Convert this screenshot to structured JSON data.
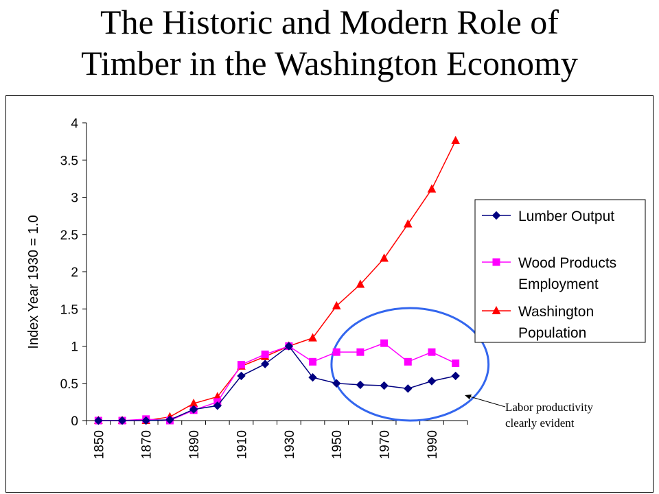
{
  "title_line1": "The Historic and Modern Role of",
  "title_line2": "Timber in the Washington Economy",
  "annotation_line1": "Labor productivity",
  "annotation_line2": "clearly evident",
  "chart_data": {
    "type": "line",
    "ylabel": "Index Year 1930 = 1.0",
    "xlabel": "",
    "ylim": [
      0,
      4
    ],
    "yticks": [
      "0",
      "0.5",
      "1",
      "1.5",
      "2",
      "2.5",
      "3",
      "3.5",
      "4"
    ],
    "x": [
      1850,
      1860,
      1870,
      1880,
      1890,
      1900,
      1910,
      1920,
      1930,
      1940,
      1950,
      1960,
      1970,
      1980,
      1990,
      2000
    ],
    "xtick_labels": [
      "1850",
      "1870",
      "1890",
      "1910",
      "1930",
      "1950",
      "1970",
      "1990"
    ],
    "legend_position": "right",
    "series": [
      {
        "name": "Lumber Output",
        "legend_lines": [
          "Lumber Output"
        ],
        "color": "#000080",
        "marker": "diamond",
        "values": [
          0,
          0,
          0,
          0.01,
          0.15,
          0.2,
          0.6,
          0.76,
          1.0,
          0.58,
          0.5,
          0.48,
          0.47,
          0.43,
          0.53,
          0.6
        ]
      },
      {
        "name": "Wood Products Employment",
        "legend_lines": [
          "Wood Products",
          "Employment"
        ],
        "color": "#ff00ff",
        "marker": "square",
        "values": [
          0,
          0,
          0.02,
          0,
          0.14,
          0.25,
          0.75,
          0.89,
          1.0,
          0.79,
          0.92,
          0.92,
          1.04,
          0.79,
          0.92,
          0.77
        ]
      },
      {
        "name": "Washington Population",
        "legend_lines": [
          "Washington",
          "Population"
        ],
        "color": "#ff0000",
        "marker": "triangle",
        "values": [
          0,
          0,
          0,
          0.05,
          0.23,
          0.32,
          0.73,
          0.86,
          1.0,
          1.11,
          1.54,
          1.83,
          2.18,
          2.64,
          3.11,
          3.76
        ]
      }
    ],
    "highlight": {
      "shape": "ellipse",
      "color": "#3366ee",
      "around_x": [
        1960,
        2000
      ]
    }
  }
}
